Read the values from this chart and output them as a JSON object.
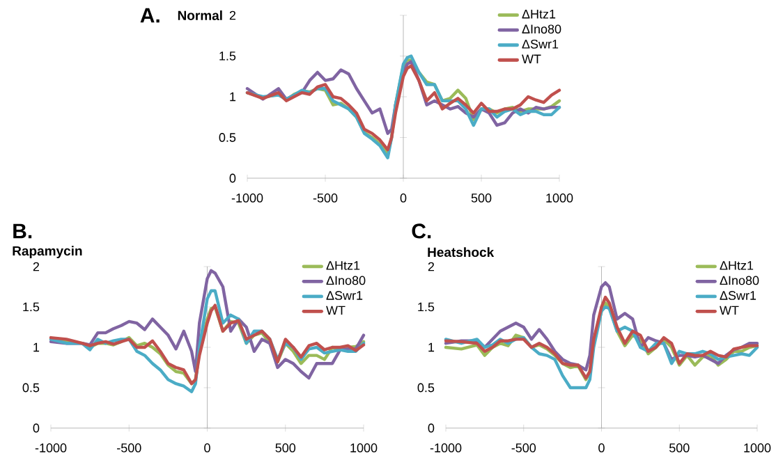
{
  "chart_data": [
    {
      "type": "line",
      "title": "A.",
      "subtitle": "Normal",
      "x": [
        -1000,
        -900,
        -800,
        -750,
        -700,
        -650,
        -600,
        -550,
        -500,
        -450,
        -400,
        -350,
        -300,
        -250,
        -200,
        -150,
        -100,
        -75,
        -50,
        0,
        25,
        50,
        100,
        150,
        200,
        250,
        300,
        350,
        400,
        450,
        500,
        550,
        600,
        650,
        700,
        750,
        800,
        850,
        900,
        950,
        1000
      ],
      "xlim": [
        -1000,
        1000
      ],
      "xticks": [
        -1000,
        -500,
        0,
        500,
        1000
      ],
      "ylim": [
        0,
        2
      ],
      "yticks": [
        0,
        0.5,
        1,
        1.5,
        2
      ],
      "legend": "top right",
      "line_style": "solid",
      "series": [
        {
          "name": "ΔHtz1",
          "color": "#9bbb59",
          "values": [
            1.05,
            0.99,
            1.03,
            0.96,
            1.03,
            1.07,
            1.06,
            1.1,
            1.08,
            0.9,
            0.92,
            0.85,
            0.75,
            0.56,
            0.5,
            0.42,
            0.3,
            0.5,
            0.9,
            1.38,
            1.45,
            1.45,
            1.3,
            1.18,
            1.15,
            0.95,
            0.98,
            1.08,
            0.98,
            0.72,
            0.85,
            0.85,
            0.8,
            0.85,
            0.87,
            0.82,
            0.85,
            0.85,
            0.85,
            0.88,
            0.95
          ]
        },
        {
          "name": "ΔIno80",
          "color": "#8064a2",
          "values": [
            1.1,
            0.97,
            1.1,
            0.97,
            1.02,
            1.05,
            1.2,
            1.3,
            1.2,
            1.22,
            1.33,
            1.28,
            1.1,
            0.95,
            0.8,
            0.85,
            0.55,
            0.6,
            0.9,
            1.3,
            1.4,
            1.43,
            1.2,
            0.9,
            0.95,
            0.9,
            0.85,
            0.88,
            0.8,
            0.75,
            0.85,
            0.8,
            0.65,
            0.68,
            0.8,
            0.85,
            0.8,
            0.87,
            0.85,
            0.87,
            0.87
          ]
        },
        {
          "name": "ΔSwr1",
          "color": "#4bacc6",
          "values": [
            1.05,
            1.0,
            1.02,
            0.97,
            1.02,
            1.08,
            1.05,
            1.1,
            1.1,
            0.95,
            0.9,
            0.85,
            0.75,
            0.55,
            0.48,
            0.4,
            0.25,
            0.5,
            0.9,
            1.4,
            1.48,
            1.5,
            1.3,
            1.15,
            1.15,
            0.95,
            0.95,
            0.95,
            0.85,
            0.65,
            0.85,
            0.85,
            0.75,
            0.82,
            0.85,
            0.78,
            0.82,
            0.82,
            0.78,
            0.78,
            0.87
          ]
        },
        {
          "name": "WT",
          "color": "#c0504d",
          "values": [
            1.05,
            0.98,
            1.05,
            0.95,
            1.0,
            1.05,
            1.03,
            1.12,
            1.15,
            1.0,
            0.98,
            0.9,
            0.8,
            0.6,
            0.55,
            0.47,
            0.35,
            0.5,
            0.8,
            1.25,
            1.35,
            1.38,
            1.2,
            0.95,
            1.05,
            0.85,
            0.92,
            0.98,
            0.9,
            0.8,
            0.92,
            0.82,
            0.82,
            0.85,
            0.85,
            0.9,
            1.0,
            0.96,
            0.93,
            1.02,
            1.08
          ]
        }
      ]
    },
    {
      "type": "line",
      "title": "B.",
      "subtitle": "Rapamycin",
      "x": [
        -1000,
        -900,
        -800,
        -750,
        -700,
        -650,
        -600,
        -550,
        -500,
        -450,
        -400,
        -350,
        -300,
        -250,
        -200,
        -150,
        -100,
        -75,
        -50,
        0,
        25,
        50,
        100,
        150,
        200,
        250,
        300,
        350,
        400,
        450,
        500,
        550,
        600,
        650,
        700,
        750,
        800,
        850,
        900,
        950,
        1000
      ],
      "xlim": [
        -1000,
        1000
      ],
      "xticks": [
        -1000,
        -500,
        0,
        500,
        1000
      ],
      "ylim": [
        0,
        2
      ],
      "yticks": [
        0,
        0.5,
        1,
        1.5,
        2
      ],
      "legend": "top right",
      "line_style": "solid",
      "series": [
        {
          "name": "ΔHtz1",
          "color": "#9bbb59",
          "values": [
            1.1,
            1.08,
            1.05,
            1.0,
            1.05,
            1.05,
            1.03,
            1.07,
            1.12,
            1.02,
            1.05,
            1.0,
            0.92,
            0.78,
            0.7,
            0.68,
            0.55,
            0.6,
            0.95,
            1.35,
            1.48,
            1.5,
            1.2,
            1.32,
            1.3,
            1.05,
            1.15,
            1.18,
            1.05,
            0.82,
            1.05,
            0.95,
            0.8,
            0.9,
            0.9,
            0.85,
            1.0,
            0.98,
            1.0,
            1.01,
            1.07
          ]
        },
        {
          "name": "ΔIno80",
          "color": "#8064a2",
          "values": [
            1.07,
            1.05,
            1.05,
            1.03,
            1.18,
            1.18,
            1.23,
            1.27,
            1.32,
            1.3,
            1.22,
            1.35,
            1.25,
            1.15,
            0.98,
            1.2,
            0.95,
            0.7,
            1.3,
            1.85,
            1.95,
            1.92,
            1.75,
            1.2,
            1.35,
            1.25,
            0.95,
            1.1,
            1.05,
            0.75,
            0.85,
            0.8,
            0.7,
            0.62,
            0.8,
            0.8,
            0.8,
            0.97,
            0.98,
            0.98,
            1.15
          ]
        },
        {
          "name": "ΔSwr1",
          "color": "#4bacc6",
          "values": [
            1.1,
            1.05,
            1.05,
            0.97,
            1.1,
            1.05,
            1.08,
            1.1,
            1.1,
            0.95,
            0.9,
            0.8,
            0.72,
            0.6,
            0.55,
            0.52,
            0.45,
            0.55,
            1.0,
            1.6,
            1.7,
            1.7,
            1.3,
            1.4,
            1.35,
            1.05,
            1.2,
            1.2,
            1.1,
            0.85,
            1.05,
            1.0,
            0.85,
            0.98,
            1.0,
            0.93,
            0.95,
            0.97,
            0.95,
            0.95,
            1.05
          ]
        },
        {
          "name": "WT",
          "color": "#c0504d",
          "values": [
            1.12,
            1.1,
            1.05,
            1.02,
            1.05,
            1.07,
            1.04,
            1.07,
            1.1,
            1.0,
            1.0,
            1.08,
            0.95,
            0.8,
            0.75,
            0.72,
            0.55,
            0.6,
            0.9,
            1.3,
            1.45,
            1.52,
            1.2,
            1.3,
            1.33,
            1.1,
            1.15,
            1.2,
            1.1,
            0.82,
            1.1,
            1.0,
            0.88,
            1.02,
            1.05,
            0.97,
            1.0,
            1.0,
            1.02,
            0.96,
            1.03
          ]
        }
      ]
    },
    {
      "type": "line",
      "title": "C.",
      "subtitle": "Heatshock",
      "x": [
        -1000,
        -900,
        -800,
        -750,
        -700,
        -650,
        -600,
        -550,
        -500,
        -450,
        -400,
        -350,
        -300,
        -250,
        -200,
        -150,
        -100,
        -75,
        -50,
        0,
        25,
        50,
        100,
        150,
        200,
        250,
        300,
        350,
        400,
        450,
        500,
        550,
        600,
        650,
        700,
        750,
        800,
        850,
        900,
        950,
        1000
      ],
      "xlim": [
        -1000,
        1000
      ],
      "xticks": [
        -1000,
        -500,
        0,
        500,
        1000
      ],
      "ylim": [
        0,
        2
      ],
      "yticks": [
        0,
        0.5,
        1,
        1.5,
        2
      ],
      "legend": "top right",
      "line_style": "solid",
      "series": [
        {
          "name": "ΔHtz1",
          "color": "#9bbb59",
          "values": [
            1.0,
            0.98,
            1.03,
            0.9,
            1.0,
            1.05,
            1.02,
            1.15,
            1.12,
            1.0,
            1.03,
            0.98,
            0.9,
            0.8,
            0.75,
            0.77,
            0.6,
            0.7,
            1.05,
            1.45,
            1.55,
            1.5,
            1.2,
            1.02,
            1.15,
            1.1,
            0.92,
            1.0,
            1.1,
            1.0,
            0.78,
            0.9,
            0.78,
            0.88,
            0.9,
            0.78,
            0.85,
            0.95,
            0.95,
            1.0,
            1.02
          ]
        },
        {
          "name": "ΔIno80",
          "color": "#8064a2",
          "values": [
            1.05,
            1.08,
            1.08,
            1.0,
            1.1,
            1.2,
            1.25,
            1.3,
            1.25,
            1.1,
            1.22,
            1.1,
            0.95,
            0.85,
            0.8,
            0.78,
            0.72,
            0.9,
            1.4,
            1.75,
            1.8,
            1.75,
            1.35,
            1.42,
            1.35,
            1.0,
            1.12,
            1.08,
            1.05,
            0.85,
            0.9,
            0.9,
            0.88,
            0.9,
            0.85,
            0.8,
            0.9,
            0.97,
            1.0,
            1.05,
            1.05
          ]
        },
        {
          "name": "ΔSwr1",
          "color": "#4bacc6",
          "values": [
            1.1,
            1.05,
            1.1,
            1.0,
            1.03,
            1.1,
            1.05,
            1.1,
            1.12,
            1.0,
            0.92,
            0.9,
            0.85,
            0.65,
            0.5,
            0.5,
            0.5,
            0.6,
            1.0,
            1.45,
            1.5,
            1.48,
            1.2,
            1.25,
            1.2,
            1.0,
            0.95,
            1.05,
            1.05,
            0.8,
            0.95,
            0.92,
            0.92,
            0.95,
            0.92,
            0.85,
            0.88,
            0.9,
            0.92,
            0.9,
            1.0
          ]
        },
        {
          "name": "WT",
          "color": "#c0504d",
          "values": [
            1.08,
            1.07,
            1.05,
            0.95,
            1.0,
            1.08,
            1.08,
            1.1,
            1.1,
            1.0,
            1.05,
            1.0,
            0.92,
            0.8,
            0.78,
            0.78,
            0.62,
            0.7,
            1.1,
            1.5,
            1.62,
            1.55,
            1.25,
            1.05,
            1.2,
            1.15,
            0.95,
            1.0,
            1.12,
            1.05,
            0.8,
            0.92,
            0.9,
            0.9,
            0.95,
            0.9,
            0.88,
            0.98,
            1.0,
            1.02,
            1.02
          ]
        }
      ]
    }
  ]
}
